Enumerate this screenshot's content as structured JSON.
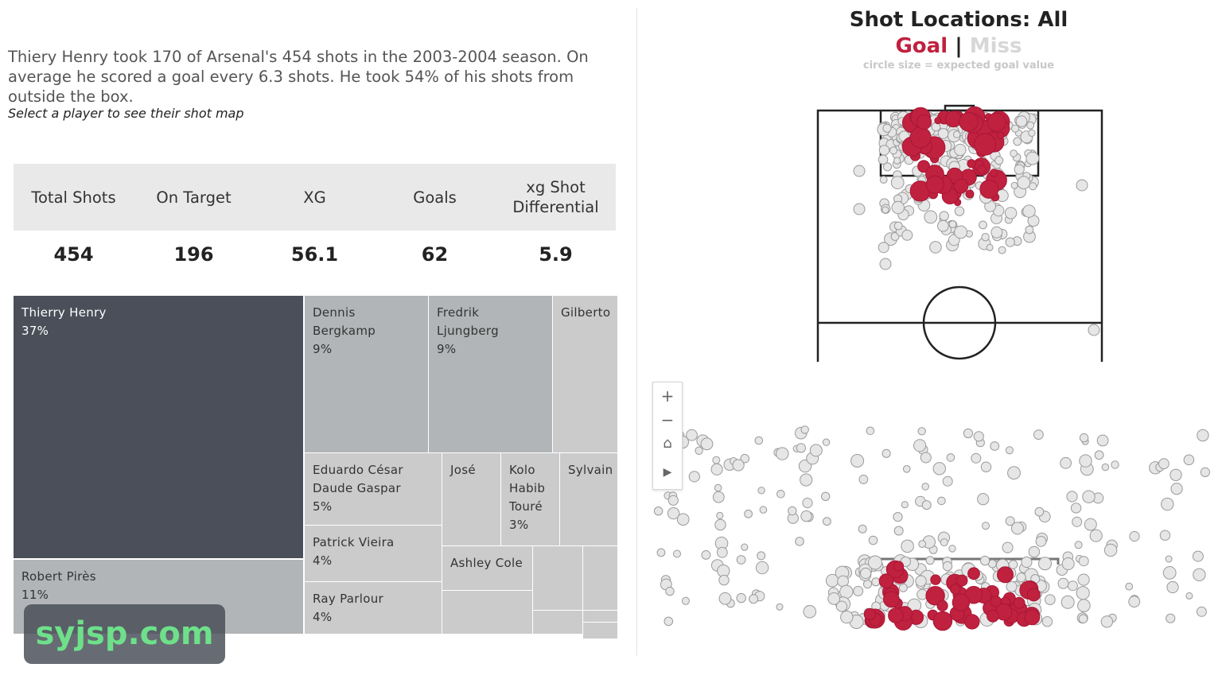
{
  "intro": {
    "text": "Thiery Henry took 170 of Arsenal's 454 shots in the 2003-2004 season. On average he scored a goal every 6.3 shots. He took 54% of his shots from outside the box.",
    "hint": "Select a player to see their shot map"
  },
  "kpis": [
    {
      "label": "Total Shots",
      "value": "454"
    },
    {
      "label": "On Target",
      "value": "196"
    },
    {
      "label": "XG",
      "value": "56.1"
    },
    {
      "label": "Goals",
      "value": "62"
    },
    {
      "label": "xg Shot Differential",
      "value": "5.9"
    }
  ],
  "treemap": [
    {
      "name": "Thierry Henry",
      "pct": "37%",
      "selected": true
    },
    {
      "name": "Robert Pirès",
      "pct": "11%"
    },
    {
      "name": "Dennis Bergkamp",
      "pct": "9%"
    },
    {
      "name": "Fredrik Ljungberg",
      "pct": "9%"
    },
    {
      "name": "Gilberto",
      "pct": ""
    },
    {
      "name": "Eduardo César Daude Gaspar",
      "pct": "5%"
    },
    {
      "name": "José",
      "pct": ""
    },
    {
      "name": "Kolo Habib Touré",
      "pct": "3%"
    },
    {
      "name": "Sylvain",
      "pct": ""
    },
    {
      "name": "Patrick Vieira",
      "pct": "4%"
    },
    {
      "name": "Ray Parlour",
      "pct": "4%"
    },
    {
      "name": "Ashley Cole",
      "pct": ""
    },
    {
      "name": "",
      "pct": ""
    },
    {
      "name": "",
      "pct": ""
    },
    {
      "name": "",
      "pct": ""
    },
    {
      "name": "",
      "pct": ""
    },
    {
      "name": "",
      "pct": ""
    },
    {
      "name": "",
      "pct": ""
    }
  ],
  "shot_map": {
    "title": "Shot Locations: All",
    "legend_goal": "Goal",
    "legend_sep": "|",
    "legend_miss": "Miss",
    "size_note": "circle size = expected goal value",
    "colors": {
      "goal": "#c0213f",
      "miss": "#e6e6e6",
      "miss_stroke": "#9a9a9a",
      "goal_stroke": "#a81634"
    }
  },
  "zoom": {
    "plus": "+",
    "minus": "−",
    "home": "⌂",
    "play": "▶"
  },
  "watermark": "syjsp.com",
  "chart_data": [
    {
      "type": "treemap",
      "title": "",
      "categories": [
        "Thierry Henry",
        "Robert Pirès",
        "Dennis Bergkamp",
        "Fredrik Ljungberg",
        "Eduardo César Daude Gaspar",
        "Patrick Vieira",
        "Ray Parlour",
        "Kolo Habib Touré"
      ],
      "values": [
        37,
        11,
        9,
        9,
        5,
        4,
        4,
        3
      ]
    },
    {
      "type": "scatter",
      "title": "Shot Locations: All",
      "series": [
        {
          "name": "Goal"
        },
        {
          "name": "Miss"
        }
      ]
    }
  ]
}
